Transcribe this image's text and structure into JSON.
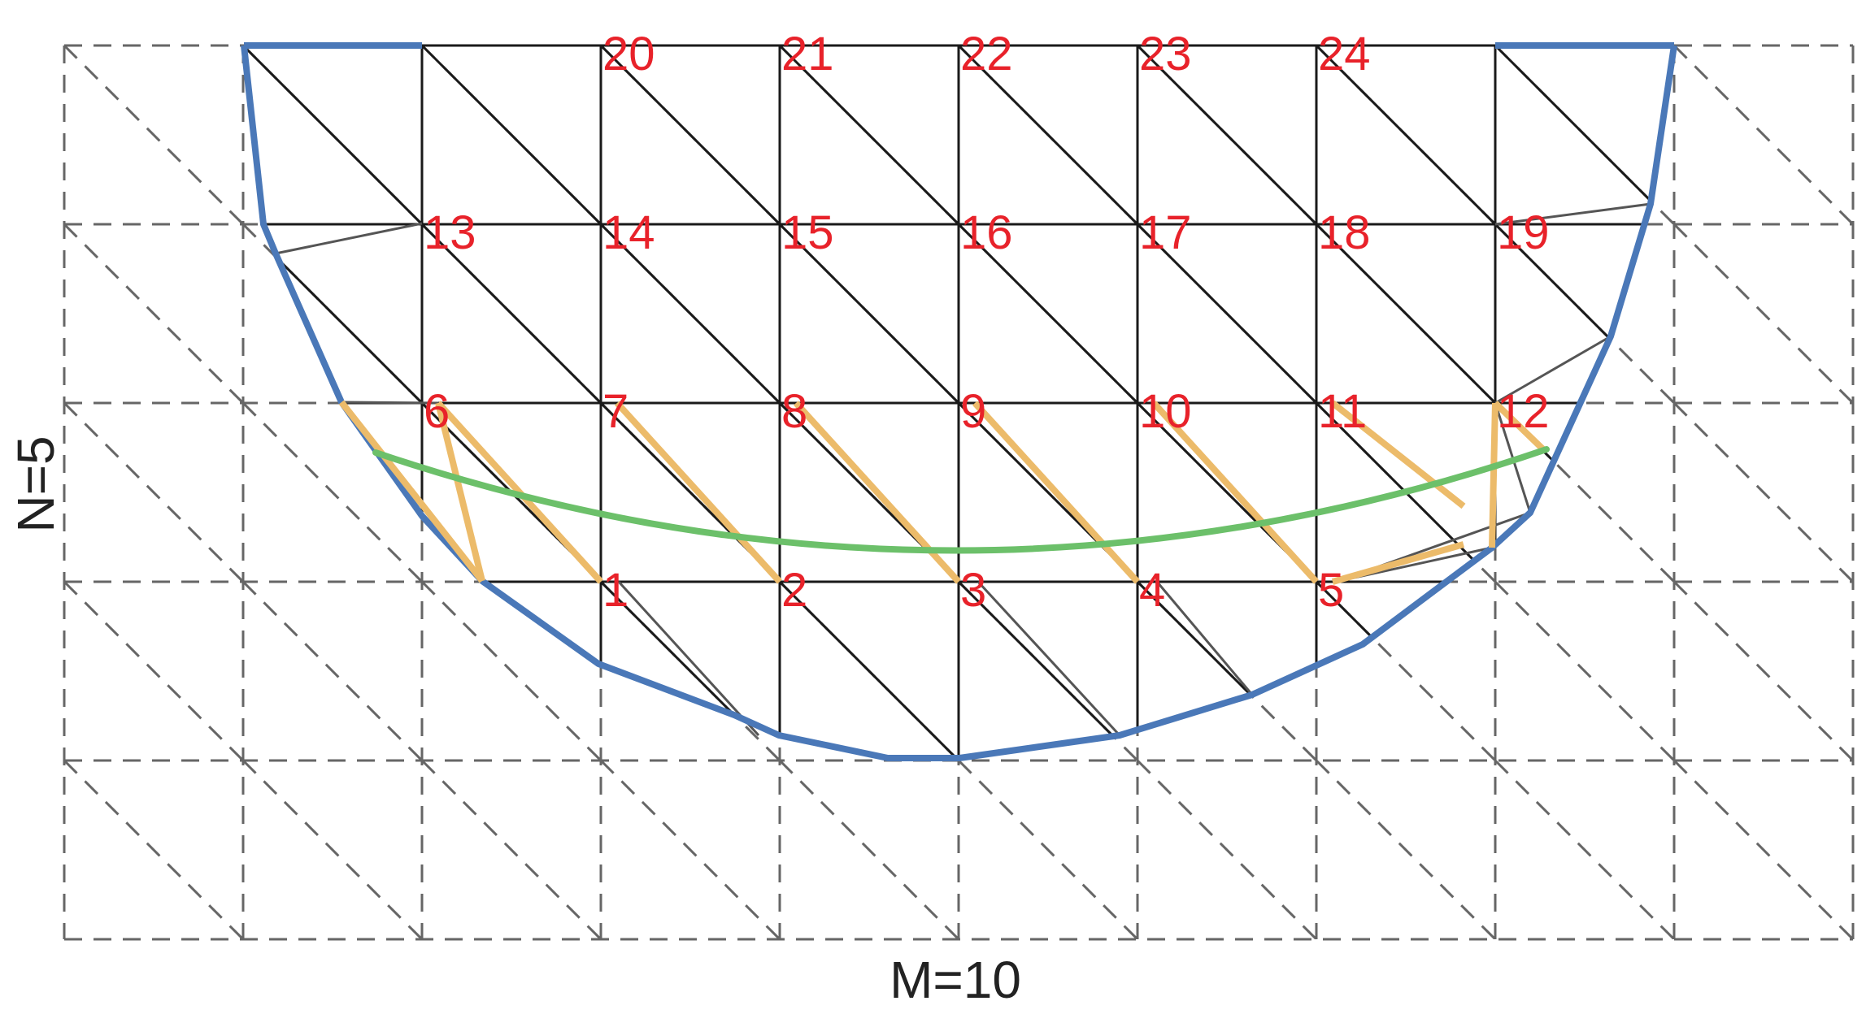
{
  "labels": {
    "x_axis": "M=10",
    "y_axis": "N=5"
  },
  "grid": {
    "columns": 10,
    "rows": 5,
    "outer_columns": 1
  },
  "nodes": [
    {
      "id": "1",
      "col": 3,
      "row": 3
    },
    {
      "id": "2",
      "col": 4,
      "row": 3
    },
    {
      "id": "3",
      "col": 5,
      "row": 3
    },
    {
      "id": "4",
      "col": 6,
      "row": 3
    },
    {
      "id": "5",
      "col": 7,
      "row": 3
    },
    {
      "id": "6",
      "col": 2,
      "row": 2
    },
    {
      "id": "7",
      "col": 3,
      "row": 2
    },
    {
      "id": "8",
      "col": 4,
      "row": 2
    },
    {
      "id": "9",
      "col": 5,
      "row": 2
    },
    {
      "id": "10",
      "col": 6,
      "row": 2
    },
    {
      "id": "11",
      "col": 7,
      "row": 2
    },
    {
      "id": "12",
      "col": 8,
      "row": 2
    },
    {
      "id": "13",
      "col": 2,
      "row": 1
    },
    {
      "id": "14",
      "col": 3,
      "row": 1
    },
    {
      "id": "15",
      "col": 4,
      "row": 1
    },
    {
      "id": "16",
      "col": 5,
      "row": 1
    },
    {
      "id": "17",
      "col": 6,
      "row": 1
    },
    {
      "id": "18",
      "col": 7,
      "row": 1
    },
    {
      "id": "19",
      "col": 8,
      "row": 1
    },
    {
      "id": "20",
      "col": 3,
      "row": 0
    },
    {
      "id": "21",
      "col": 4,
      "row": 0
    },
    {
      "id": "22",
      "col": 5,
      "row": 0
    },
    {
      "id": "23",
      "col": 6,
      "row": 0
    },
    {
      "id": "24",
      "col": 7,
      "row": 0
    }
  ],
  "colors": {
    "boundary": "#4a78b8",
    "green_curve": "#6cc06a",
    "orange_links": "#ecbb6a",
    "node_labels": "#e8222a",
    "mesh_lines": "#1a1a1a",
    "dashed_lines": "#666666"
  }
}
